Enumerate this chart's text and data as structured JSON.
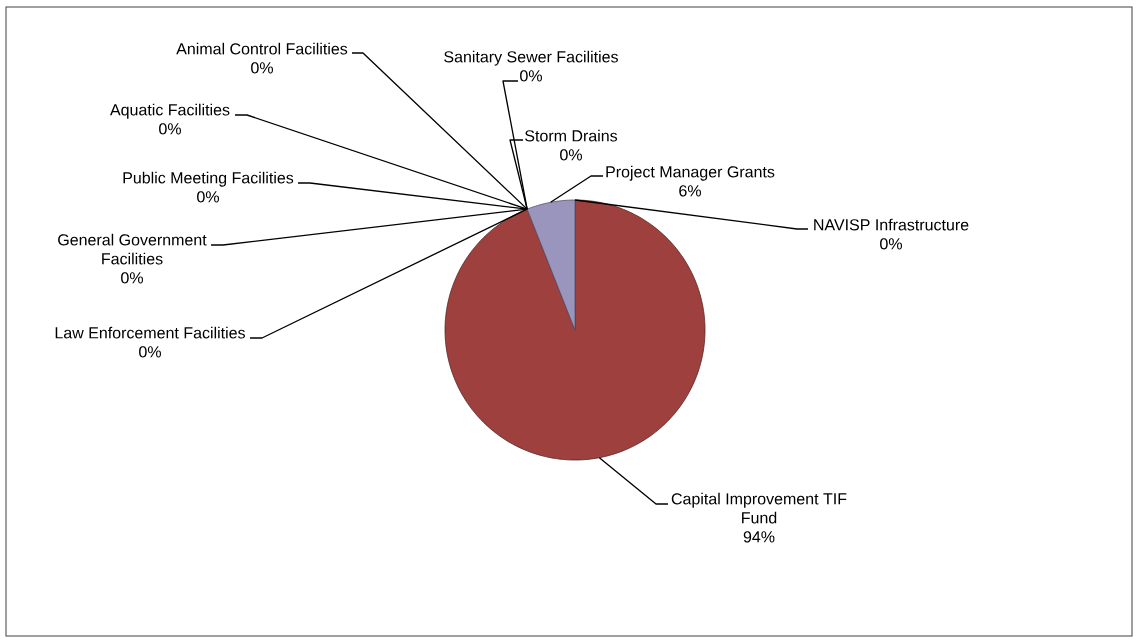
{
  "chart_data": {
    "type": "pie",
    "categories": [
      "Capital Improvement TIF Fund",
      "Law Enforcement Facilities",
      "General Government Facilities",
      "Public Meeting Facilities",
      "Aquatic Facilities",
      "Animal Control Facilities",
      "Sanitary Sewer Facilities",
      "Storm Drains",
      "Project Manager Grants",
      "NAVISP Infrastructure"
    ],
    "values": [
      94,
      0,
      0,
      0,
      0,
      0,
      0,
      0,
      6,
      0
    ],
    "value_labels": [
      "94%",
      "0%",
      "0%",
      "0%",
      "0%",
      "0%",
      "0%",
      "0%",
      "6%",
      "0%"
    ],
    "colors": [
      "#9e413e",
      null,
      null,
      null,
      null,
      null,
      null,
      null,
      "#9a95bd",
      null
    ]
  }
}
